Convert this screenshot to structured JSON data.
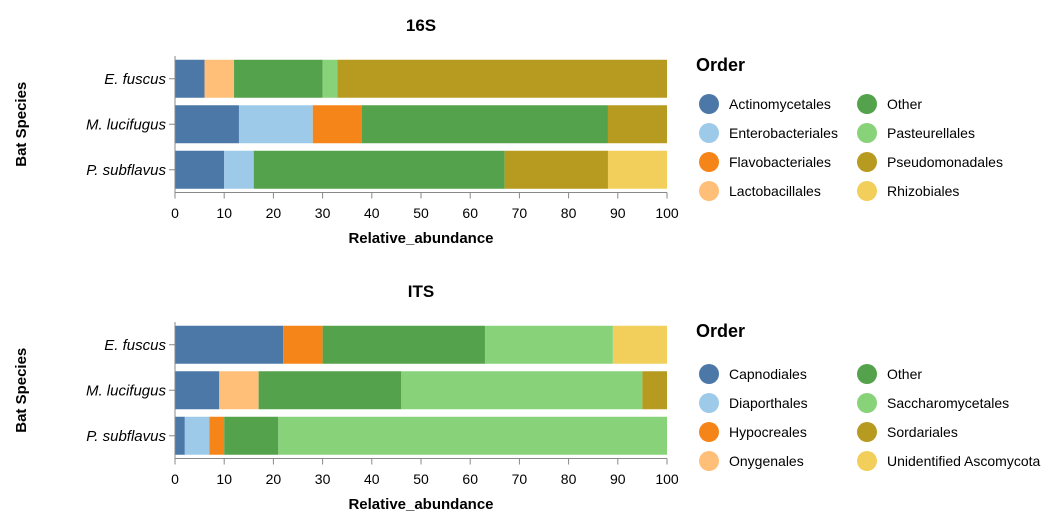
{
  "chart_data": [
    {
      "type": "bar",
      "orientation": "horizontal",
      "stacked": true,
      "title": "16S",
      "xlabel": "Relative_abundance",
      "ylabel": "Bat Species",
      "xlim": [
        0,
        100
      ],
      "xticks": [
        "0",
        "10",
        "20",
        "30",
        "40",
        "50",
        "60",
        "70",
        "80",
        "90",
        "100"
      ],
      "categories": [
        "E. fuscus",
        "M. lucifugus",
        "P. subflavus"
      ],
      "legend_title": "Order",
      "legend_position": "right",
      "series": [
        {
          "name": "Actinomycetales",
          "color": "#4c78a8",
          "values": [
            6,
            13,
            10
          ]
        },
        {
          "name": "Enterobacteriales",
          "color": "#9ecae9",
          "values": [
            0,
            15,
            6
          ]
        },
        {
          "name": "Flavobacteriales",
          "color": "#f58518",
          "values": [
            0,
            10,
            0
          ]
        },
        {
          "name": "Lactobacillales",
          "color": "#ffbf79",
          "values": [
            6,
            0,
            0
          ]
        },
        {
          "name": "Other",
          "color": "#54a24b",
          "values": [
            18,
            50,
            51
          ]
        },
        {
          "name": "Pasteurellales",
          "color": "#88d27a",
          "values": [
            3,
            0,
            0
          ]
        },
        {
          "name": "Pseudomonadales",
          "color": "#b79a20",
          "values": [
            67,
            12,
            21
          ]
        },
        {
          "name": "Rhizobiales",
          "color": "#f2cf5b",
          "values": [
            0,
            0,
            12
          ]
        }
      ]
    },
    {
      "type": "bar",
      "orientation": "horizontal",
      "stacked": true,
      "title": "ITS",
      "xlabel": "Relative_abundance",
      "ylabel": "Bat Species",
      "xlim": [
        0,
        100
      ],
      "xticks": [
        "0",
        "10",
        "20",
        "30",
        "40",
        "50",
        "60",
        "70",
        "80",
        "90",
        "100"
      ],
      "categories": [
        "E. fuscus",
        "M. lucifugus",
        "P. subflavus"
      ],
      "legend_title": "Order",
      "legend_position": "right",
      "series": [
        {
          "name": "Capnodiales",
          "color": "#4c78a8",
          "values": [
            22,
            9,
            2
          ]
        },
        {
          "name": "Diaporthales",
          "color": "#9ecae9",
          "values": [
            0,
            0,
            5
          ]
        },
        {
          "name": "Hypocreales",
          "color": "#f58518",
          "values": [
            8,
            0,
            3
          ]
        },
        {
          "name": "Onygenales",
          "color": "#ffbf79",
          "values": [
            0,
            8,
            0
          ]
        },
        {
          "name": "Other",
          "color": "#54a24b",
          "values": [
            33,
            29,
            11
          ]
        },
        {
          "name": "Saccharomycetales",
          "color": "#88d27a",
          "values": [
            26,
            49,
            79
          ]
        },
        {
          "name": "Sordariales",
          "color": "#b79a20",
          "values": [
            0,
            5,
            0
          ]
        },
        {
          "name": "Unidentified Ascomycota",
          "color": "#f2cf5b",
          "values": [
            11,
            0,
            0
          ]
        }
      ]
    }
  ]
}
